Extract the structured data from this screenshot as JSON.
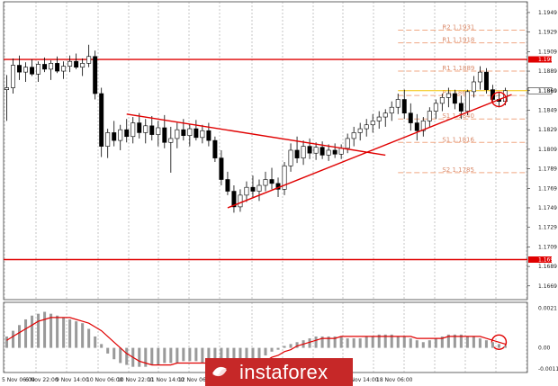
{
  "colors": {
    "background": "#ffffff",
    "candle": "#000000",
    "level": "#e00000",
    "fib": "#f0a884",
    "price_line": "#f2c200",
    "histogram": "#9a9a9a",
    "signal": "#e00000",
    "brand_bg": "#c62828",
    "grid": "#8a8a8a"
  },
  "chart_data": {
    "type": "candlestick",
    "symbol_hint": "EURUSD H1",
    "price_axis": {
      "ticks": [
        "1.1949",
        "1.1929",
        "1.1909",
        "1.1889",
        "1.1869",
        "1.1849",
        "1.1829",
        "1.1809",
        "1.1789",
        "1.1769",
        "1.1749",
        "1.1729",
        "1.1709",
        "1.1689",
        "1.1669"
      ],
      "ylim": [
        1.1655,
        1.196
      ]
    },
    "time_axis": {
      "ticks": [
        "5 Nov 06:00",
        "6 Nov 22:00",
        "9 Nov 14:00",
        "10 Nov 06:00",
        "10 Nov 22:00",
        "11 Nov 14:00",
        "12 Nov 06:00",
        "17 Nov 14:00",
        "18 Nov 06:00"
      ]
    },
    "current_price": {
      "value": 1.1869,
      "label": "1.1869"
    },
    "horizontal_levels": [
      {
        "value": 1.1901,
        "label": "1.1901"
      },
      {
        "value": 1.1696,
        "label": "1.1696"
      }
    ],
    "fibonacci_levels": [
      {
        "label": "R2 1.1931",
        "value": 1.1931
      },
      {
        "label": "R1 1.1918",
        "value": 1.1918
      },
      {
        "label": "R1 1.1889",
        "value": 1.1889
      },
      {
        "label": "P 1.1864",
        "value": 1.1864
      },
      {
        "label": "S1 1.1840",
        "value": 1.184
      },
      {
        "label": "S1 1.1816",
        "value": 1.1816
      },
      {
        "label": "S2 1.1785",
        "value": 1.1785
      }
    ],
    "candles": [
      [
        1.187,
        1.1885,
        1.1838,
        1.1872
      ],
      [
        1.1872,
        1.1902,
        1.1866,
        1.1895
      ],
      [
        1.1895,
        1.1905,
        1.188,
        1.1888
      ],
      [
        1.1888,
        1.1898,
        1.1878,
        1.1893
      ],
      [
        1.1893,
        1.1901,
        1.1884,
        1.1886
      ],
      [
        1.1886,
        1.1899,
        1.1878,
        1.1896
      ],
      [
        1.1896,
        1.1903,
        1.1888,
        1.1891
      ],
      [
        1.1891,
        1.19,
        1.188,
        1.1897
      ],
      [
        1.1897,
        1.1904,
        1.1887,
        1.1889
      ],
      [
        1.1889,
        1.1899,
        1.1881,
        1.1894
      ],
      [
        1.1894,
        1.1905,
        1.1888,
        1.1899
      ],
      [
        1.1899,
        1.1907,
        1.1891,
        1.1893
      ],
      [
        1.1893,
        1.1902,
        1.1884,
        1.1897
      ],
      [
        1.1897,
        1.1916,
        1.1893,
        1.1904
      ],
      [
        1.1904,
        1.191,
        1.186,
        1.1866
      ],
      [
        1.1866,
        1.1872,
        1.1801,
        1.1812
      ],
      [
        1.1812,
        1.183,
        1.18,
        1.1826
      ],
      [
        1.1826,
        1.1838,
        1.1812,
        1.1818
      ],
      [
        1.1818,
        1.1834,
        1.1808,
        1.1829
      ],
      [
        1.1829,
        1.184,
        1.1816,
        1.1822
      ],
      [
        1.1822,
        1.1842,
        1.1815,
        1.1836
      ],
      [
        1.1836,
        1.1846,
        1.182,
        1.1826
      ],
      [
        1.1826,
        1.184,
        1.1815,
        1.1833
      ],
      [
        1.1833,
        1.1843,
        1.1818,
        1.1824
      ],
      [
        1.1824,
        1.1838,
        1.1812,
        1.1831
      ],
      [
        1.1831,
        1.1844,
        1.181,
        1.1816
      ],
      [
        1.1816,
        1.1832,
        1.1785,
        1.182
      ],
      [
        1.182,
        1.1836,
        1.181,
        1.1829
      ],
      [
        1.1829,
        1.184,
        1.1818,
        1.1823
      ],
      [
        1.1823,
        1.1835,
        1.1812,
        1.183
      ],
      [
        1.183,
        1.1839,
        1.1818,
        1.1821
      ],
      [
        1.1821,
        1.1834,
        1.1815,
        1.1828
      ],
      [
        1.1828,
        1.1836,
        1.1812,
        1.1818
      ],
      [
        1.1818,
        1.1822,
        1.1796,
        1.18
      ],
      [
        1.18,
        1.1808,
        1.1772,
        1.1778
      ],
      [
        1.1778,
        1.1786,
        1.1762,
        1.1766
      ],
      [
        1.1766,
        1.1772,
        1.1744,
        1.175
      ],
      [
        1.175,
        1.1768,
        1.1745,
        1.1762
      ],
      [
        1.1762,
        1.1776,
        1.1755,
        1.177
      ],
      [
        1.177,
        1.1782,
        1.176,
        1.1766
      ],
      [
        1.1766,
        1.1778,
        1.1756,
        1.1772
      ],
      [
        1.1772,
        1.1786,
        1.1766,
        1.1778
      ],
      [
        1.1778,
        1.179,
        1.1768,
        1.1774
      ],
      [
        1.1774,
        1.178,
        1.176,
        1.1768
      ],
      [
        1.1768,
        1.1796,
        1.1762,
        1.1792
      ],
      [
        1.1792,
        1.1815,
        1.1786,
        1.1808
      ],
      [
        1.1808,
        1.1822,
        1.1795,
        1.18
      ],
      [
        1.18,
        1.1818,
        1.1793,
        1.1812
      ],
      [
        1.1812,
        1.182,
        1.1799,
        1.1805
      ],
      [
        1.1805,
        1.1816,
        1.1798,
        1.1811
      ],
      [
        1.1811,
        1.1817,
        1.1799,
        1.1803
      ],
      [
        1.1803,
        1.1814,
        1.1797,
        1.1808
      ],
      [
        1.1808,
        1.1815,
        1.18,
        1.1804
      ],
      [
        1.1804,
        1.1814,
        1.1799,
        1.181
      ],
      [
        1.181,
        1.1825,
        1.1805,
        1.182
      ],
      [
        1.182,
        1.1832,
        1.1812,
        1.1826
      ],
      [
        1.1826,
        1.1836,
        1.1818,
        1.183
      ],
      [
        1.183,
        1.184,
        1.1822,
        1.1834
      ],
      [
        1.1834,
        1.1845,
        1.1826,
        1.1838
      ],
      [
        1.1838,
        1.1848,
        1.183,
        1.1842
      ],
      [
        1.1842,
        1.185,
        1.1832,
        1.1846
      ],
      [
        1.1846,
        1.1858,
        1.1838,
        1.1852
      ],
      [
        1.1852,
        1.1866,
        1.1845,
        1.186
      ],
      [
        1.186,
        1.187,
        1.184,
        1.1846
      ],
      [
        1.1846,
        1.1856,
        1.1828,
        1.1836
      ],
      [
        1.1836,
        1.1845,
        1.1818,
        1.1828
      ],
      [
        1.1828,
        1.1842,
        1.1822,
        1.1838
      ],
      [
        1.1838,
        1.1852,
        1.1832,
        1.1848
      ],
      [
        1.1848,
        1.186,
        1.184,
        1.1856
      ],
      [
        1.1856,
        1.1866,
        1.1848,
        1.1862
      ],
      [
        1.1862,
        1.1872,
        1.1852,
        1.1866
      ],
      [
        1.1866,
        1.187,
        1.185,
        1.1856
      ],
      [
        1.1856,
        1.1864,
        1.184,
        1.1848
      ],
      [
        1.1848,
        1.187,
        1.1844,
        1.1868
      ],
      [
        1.1868,
        1.1884,
        1.1862,
        1.1878
      ],
      [
        1.1878,
        1.1894,
        1.187,
        1.1888
      ],
      [
        1.1888,
        1.1892,
        1.1866,
        1.187
      ],
      [
        1.187,
        1.1875,
        1.1856,
        1.186
      ],
      [
        1.186,
        1.1868,
        1.1852,
        1.1858
      ],
      [
        1.1858,
        1.1872,
        1.1854,
        1.1869
      ]
    ],
    "trend_lines": [
      {
        "name": "descending",
        "from": [
          19,
          1.1845
        ],
        "to": [
          60,
          1.1803
        ]
      },
      {
        "name": "ascending",
        "from": [
          35,
          1.1749
        ],
        "to": [
          80,
          1.1865
        ]
      }
    ],
    "circled_points": [
      {
        "pane": "price",
        "bar": 78
      },
      {
        "pane": "indicator",
        "bar": 78
      }
    ],
    "indicator": {
      "ticks": [
        "0.0021",
        "0.00",
        "-0.0011"
      ],
      "ylim": [
        -0.0013,
        0.0024
      ],
      "histogram": [
        0.0006,
        0.0009,
        0.0012,
        0.0015,
        0.0017,
        0.0018,
        0.0019,
        0.0018,
        0.0017,
        0.0016,
        0.0015,
        0.0014,
        0.0013,
        0.001,
        0.0006,
        0.0002,
        -0.0003,
        -0.0006,
        -0.0008,
        -0.0009,
        -0.001,
        -0.001,
        -0.001,
        -0.0009,
        -0.0009,
        -0.0008,
        -0.0008,
        -0.0008,
        -0.0007,
        -0.0007,
        -0.0007,
        -0.0008,
        -0.0009,
        -0.001,
        -0.0011,
        -0.0011,
        -0.0011,
        -0.001,
        -0.0009,
        -0.0008,
        -0.0006,
        -0.0004,
        -0.0002,
        -0.0001,
        0.0001,
        0.0002,
        0.0003,
        0.0004,
        0.0005,
        0.0006,
        0.0006,
        0.0006,
        0.0006,
        0.0006,
        0.0005,
        0.0005,
        0.0005,
        0.0006,
        0.0006,
        0.0007,
        0.0007,
        0.0007,
        0.0006,
        0.0006,
        0.0005,
        0.0004,
        0.0003,
        0.0004,
        0.0005,
        0.0006,
        0.0007,
        0.0007,
        0.0007,
        0.0006,
        0.0006,
        0.0005,
        0.0004,
        0.0003,
        0.0002,
        0.0001
      ],
      "signal": [
        0.0004,
        0.0006,
        0.0008,
        0.001,
        0.0012,
        0.0014,
        0.0015,
        0.0016,
        0.0016,
        0.0016,
        0.0016,
        0.0015,
        0.0014,
        0.0013,
        0.0011,
        0.0009,
        0.0006,
        0.0003,
        0.0,
        -0.0003,
        -0.0005,
        -0.0007,
        -0.0008,
        -0.0009,
        -0.0009,
        -0.0009,
        -0.0009,
        -0.0008,
        -0.0008,
        -0.0008,
        -0.0008,
        -0.0008,
        -0.0008,
        -0.0009,
        -0.0009,
        -0.001,
        -0.001,
        -0.001,
        -0.001,
        -0.0009,
        -0.0008,
        -0.0007,
        -0.0005,
        -0.0004,
        -0.0002,
        -0.0001,
        0.0001,
        0.0002,
        0.0003,
        0.0004,
        0.0005,
        0.0005,
        0.0005,
        0.0006,
        0.0006,
        0.0006,
        0.0006,
        0.0006,
        0.0006,
        0.0006,
        0.0006,
        0.0006,
        0.0006,
        0.0006,
        0.0006,
        0.0005,
        0.0005,
        0.0005,
        0.0005,
        0.0005,
        0.0006,
        0.0006,
        0.0006,
        0.0006,
        0.0006,
        0.0006,
        0.0005,
        0.0004,
        0.0003,
        0.0002
      ]
    }
  },
  "brand": {
    "text": "instaforex"
  }
}
